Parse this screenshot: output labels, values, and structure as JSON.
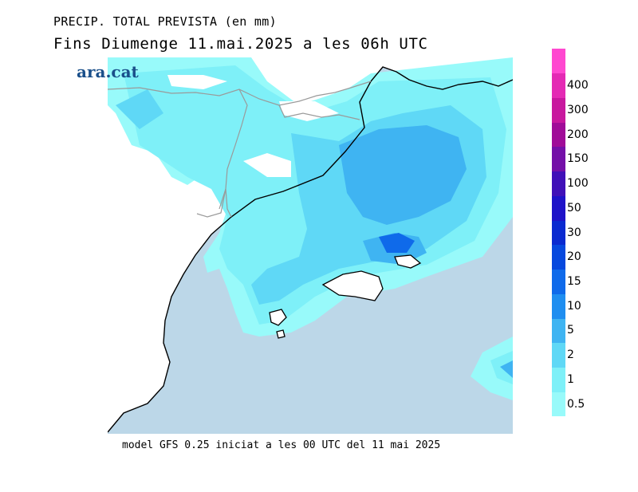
{
  "header": {
    "title_line1": "PRECIP. TOTAL PREVISTA (en mm)",
    "title_line2": "Fins Diumenge 11.mai.2025 a les 06h UTC"
  },
  "logo": {
    "text": "ara.cat",
    "color": "#1a4f8a"
  },
  "footer": {
    "text": "model GFS 0.25 iniciat a les 00 UTC del 11 mai 2025"
  },
  "map": {
    "sea_color": "#bcd7e8",
    "land_color": "#ffffff",
    "coast_color": "#000000",
    "border_color": "#9a9a9a"
  },
  "legend": {
    "levels": [
      {
        "label": "0.5",
        "color": "#98fafa"
      },
      {
        "label": "1",
        "color": "#7ef0f8"
      },
      {
        "label": "2",
        "color": "#5fd8f6"
      },
      {
        "label": "5",
        "color": "#3fb4f2"
      },
      {
        "label": "10",
        "color": "#1f8ef0"
      },
      {
        "label": "15",
        "color": "#0f6aea"
      },
      {
        "label": "20",
        "color": "#0648de"
      },
      {
        "label": "30",
        "color": "#0a2ad0"
      },
      {
        "label": "50",
        "color": "#1e12c8"
      },
      {
        "label": "100",
        "color": "#4010b8"
      },
      {
        "label": "150",
        "color": "#7410a8"
      },
      {
        "label": "200",
        "color": "#a00c98"
      },
      {
        "label": "300",
        "color": "#c8189e"
      },
      {
        "label": "400",
        "color": "#e42ab4"
      },
      {
        "label": "",
        "color": "#ff48d0"
      }
    ]
  }
}
